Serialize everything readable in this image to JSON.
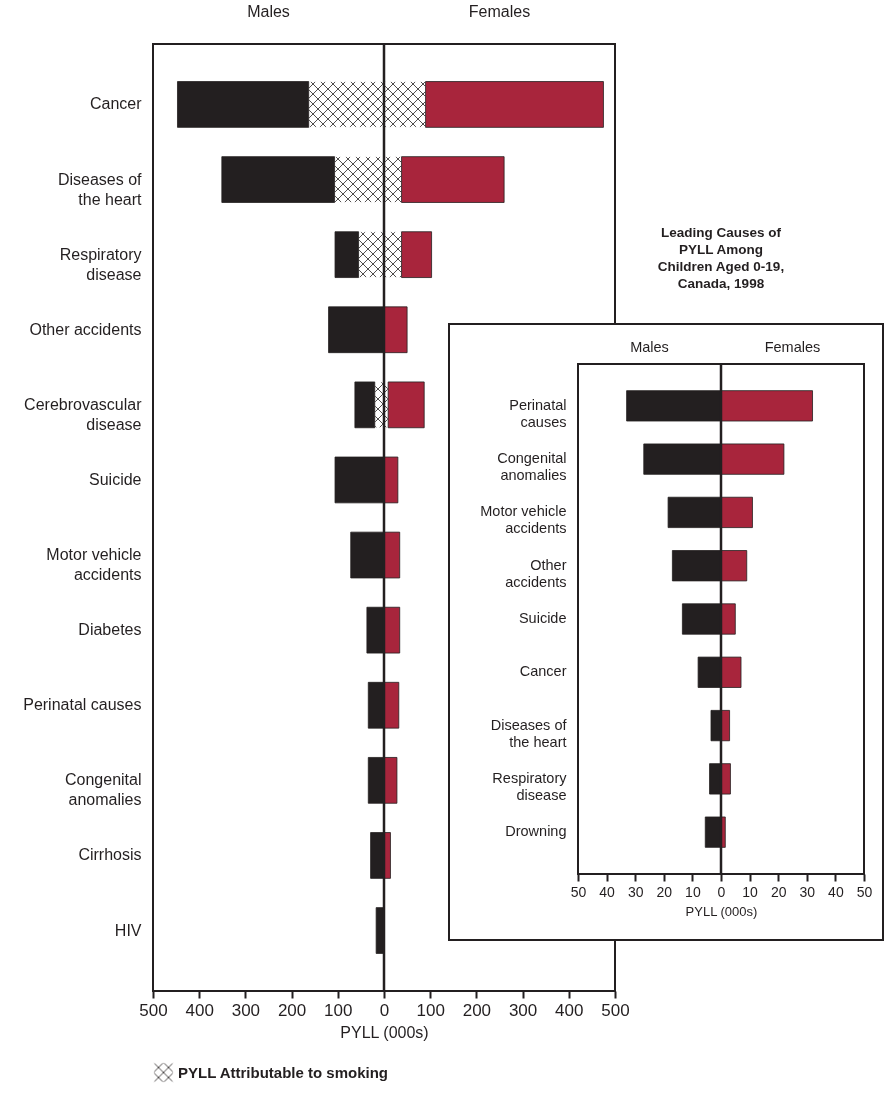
{
  "chart_data": [
    {
      "type": "bar",
      "orientation": "horizontal",
      "stacked": true,
      "categories": [
        "Cancer",
        "Diseases of\nthe heart",
        "Respiratory\ndisease",
        "Other accidents",
        "Cerebrovascular\ndisease",
        "Suicide",
        "Motor vehicle\naccidents",
        "Diabetes",
        "Perinatal causes",
        "Congenital\nanomalies",
        "Cirrhosis",
        "HIV"
      ],
      "series": [
        {
          "name": "PYLL Attributable to smoking",
          "color": "#ffffff",
          "values": [
            -163,
            -107,
            -55,
            null,
            -20,
            null,
            null,
            null,
            null,
            null,
            null,
            null
          ]
        },
        {
          "color": "#231f20",
          "values": [
            -284,
            -244,
            -51,
            -120,
            -43,
            -106,
            -72,
            -37,
            -34,
            -34,
            -29,
            -17
          ]
        },
        {
          "color": "#ffffff",
          "values": [
            90,
            38,
            38,
            null,
            9,
            null,
            null,
            null,
            null,
            null,
            null,
            null
          ]
        },
        {
          "color": "#a8253c",
          "values": [
            385,
            222,
            65,
            50,
            78,
            30,
            34,
            34,
            32,
            28,
            14,
            null
          ]
        }
      ],
      "xlim": [
        -500,
        500
      ],
      "xticks": [
        {
          "value": -500,
          "label": "500"
        },
        {
          "value": -400,
          "label": "400"
        },
        {
          "value": -300,
          "label": "300"
        },
        {
          "value": -200,
          "label": "200"
        },
        {
          "value": -100,
          "label": "100"
        },
        0,
        100,
        200,
        300,
        400,
        500
      ],
      "xlabel": "PYLL (000s)",
      "legend": "bottom",
      "annotations": [
        "Males",
        "Females"
      ],
      "ref_lines": [
        {
          "axis": "x",
          "value": 0
        }
      ]
    },
    {
      "type": "bar",
      "orientation": "horizontal",
      "stacked": true,
      "title": "Leading Causes of\nPYLL Among\nChildren Aged 0-19,\nCanada, 1998",
      "categories": [
        "Perinatal\ncauses",
        "Congenital\nanomalies",
        "Motor vehicle\naccidents",
        "Other\naccidents",
        "Suicide",
        "Cancer",
        "Diseases of\nthe heart",
        "Respiratory\ndisease",
        "Drowning"
      ],
      "series": [
        {
          "color": "#231f20",
          "values": [
            -33,
            -27,
            -18.5,
            -17,
            -13.5,
            -8,
            -3.5,
            -4,
            -5.5
          ]
        },
        {
          "color": "#a8253c",
          "values": [
            32,
            22,
            11,
            9,
            5,
            7,
            3,
            3.3,
            1.5
          ]
        }
      ],
      "xlim": [
        -50,
        50
      ],
      "annotations": [
        "Males",
        "Females"
      ],
      "xticks": [
        {
          "value": -50,
          "label": "50"
        },
        {
          "value": -40,
          "label": "40"
        },
        {
          "value": -30,
          "label": "30"
        },
        {
          "value": -20,
          "label": "20"
        },
        {
          "value": -10,
          "label": "10"
        },
        0,
        10,
        20,
        30,
        40,
        50
      ],
      "xlabel": "PYLL (000s)",
      "ref_lines": [
        {
          "axis": "x",
          "value": 0
        }
      ]
    }
  ]
}
